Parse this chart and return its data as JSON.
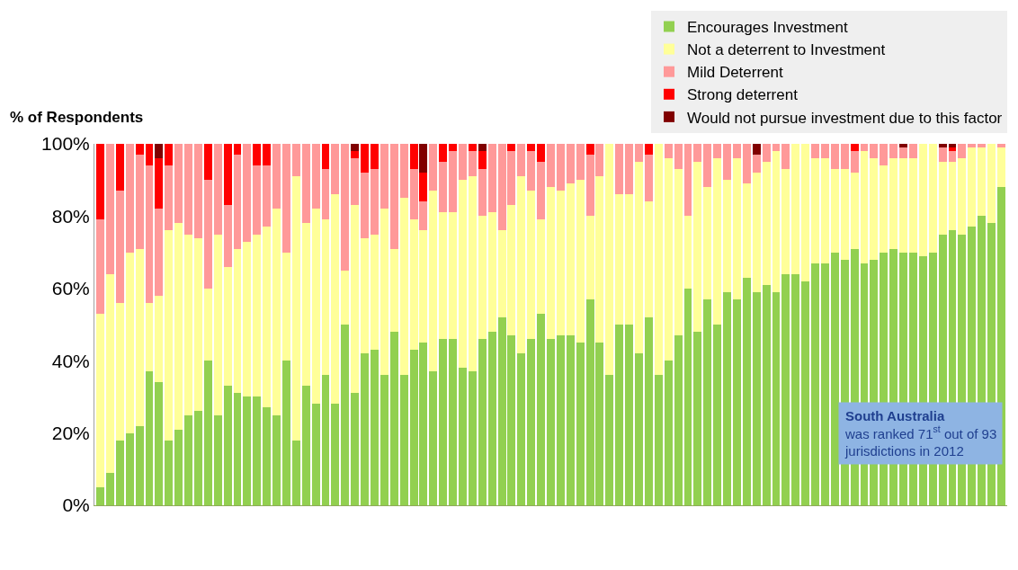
{
  "chart_data": {
    "type": "bar",
    "stacked": true,
    "ylabel": "% of Respondents",
    "categories": [
      null,
      null,
      null,
      null,
      null,
      null,
      null,
      null,
      null,
      null,
      null,
      null,
      null,
      null,
      null,
      null,
      null,
      null,
      null,
      null,
      null,
      null,
      null,
      null,
      null,
      null,
      null,
      null,
      null,
      null,
      null,
      null,
      null,
      null,
      null,
      null,
      null,
      null,
      null,
      null,
      null,
      null,
      null,
      null,
      null,
      null,
      null,
      null,
      null,
      null,
      null,
      null,
      null,
      null,
      null,
      null,
      null,
      null,
      null,
      null,
      null,
      null,
      null,
      null,
      null,
      null,
      null,
      null,
      null,
      null,
      null,
      null,
      null,
      null,
      null,
      null,
      null,
      null,
      null,
      null,
      null,
      null,
      null,
      null,
      null,
      null,
      null,
      null,
      null,
      null,
      null,
      null,
      null
    ],
    "series": [
      {
        "name": "Encourages Investment",
        "color": "#92d050",
        "values": [
          5,
          9,
          18,
          20,
          22,
          37,
          34,
          18,
          21,
          25,
          26,
          40,
          25,
          33,
          31,
          30,
          30,
          27,
          25,
          40,
          18,
          33,
          28,
          36,
          28,
          50,
          31,
          42,
          43,
          36,
          48,
          36,
          43,
          45,
          37,
          46,
          46,
          38,
          37,
          46,
          48,
          52,
          47,
          42,
          46,
          53,
          46,
          47,
          47,
          45,
          57,
          45,
          36,
          50,
          50,
          42,
          52,
          36,
          40,
          47,
          60,
          48,
          57,
          50,
          59,
          57,
          63,
          59,
          61,
          59,
          64,
          64,
          62,
          67,
          67,
          70,
          68,
          71,
          67,
          68,
          70,
          71,
          70,
          70,
          69,
          70,
          75,
          76,
          75,
          77,
          80,
          78,
          88
        ]
      },
      {
        "name": "Not a deterrent to Investment",
        "color": "#ffff99",
        "values": [
          48,
          55,
          38,
          50,
          49,
          19,
          24,
          58,
          57,
          50,
          48,
          20,
          50,
          33,
          40,
          43,
          45,
          50,
          57,
          30,
          73,
          45,
          54,
          43,
          58,
          15,
          52,
          32,
          32,
          46,
          23,
          49,
          36,
          31,
          50,
          35,
          35,
          52,
          54,
          34,
          33,
          24,
          36,
          49,
          41,
          26,
          42,
          40,
          42,
          45,
          23,
          46,
          64,
          36,
          36,
          53,
          32,
          64,
          56,
          46,
          20,
          47,
          31,
          46,
          31,
          39,
          26,
          33,
          34,
          39,
          29,
          36,
          38,
          29,
          29,
          23,
          25,
          21,
          31,
          28,
          24,
          25,
          26,
          26,
          31,
          30,
          20,
          19,
          21,
          22,
          19,
          22,
          11
        ]
      },
      {
        "name": "Mild Deterrent",
        "color": "#ff9999",
        "values": [
          26,
          36,
          31,
          30,
          26,
          38,
          24,
          18,
          22,
          25,
          26,
          30,
          25,
          17,
          26,
          27,
          19,
          17,
          18,
          30,
          9,
          22,
          18,
          14,
          14,
          35,
          13,
          18,
          18,
          18,
          29,
          15,
          14,
          8,
          13,
          14,
          17,
          10,
          7,
          13,
          19,
          24,
          15,
          9,
          11,
          16,
          12,
          13,
          11,
          10,
          17,
          9,
          0,
          14,
          14,
          5,
          13,
          0,
          4,
          7,
          20,
          5,
          12,
          4,
          10,
          4,
          11,
          5,
          5,
          2,
          7,
          0,
          0,
          4,
          4,
          7,
          7,
          6,
          2,
          4,
          6,
          4,
          3,
          4,
          0,
          0,
          4,
          3,
          4,
          1,
          1,
          0,
          1
        ]
      },
      {
        "name": "Strong deterrent",
        "color": "#ff0000",
        "values": [
          21,
          0,
          13,
          0,
          3,
          6,
          14,
          6,
          0,
          0,
          0,
          10,
          0,
          17,
          3,
          0,
          6,
          6,
          0,
          0,
          0,
          0,
          0,
          7,
          0,
          0,
          2,
          8,
          7,
          0,
          0,
          0,
          7,
          8,
          0,
          5,
          2,
          0,
          2,
          5,
          0,
          0,
          2,
          0,
          2,
          5,
          0,
          0,
          0,
          0,
          3,
          0,
          0,
          0,
          0,
          0,
          3,
          0,
          0,
          0,
          0,
          0,
          0,
          0,
          0,
          0,
          0,
          0,
          0,
          0,
          0,
          0,
          0,
          0,
          0,
          0,
          0,
          2,
          0,
          0,
          0,
          0,
          0,
          0,
          0,
          0,
          0,
          1,
          0,
          0,
          0,
          0,
          0
        ]
      },
      {
        "name": "Would not pursue investment due to this factor",
        "color": "#800000",
        "values": [
          0,
          0,
          0,
          0,
          0,
          0,
          4,
          0,
          0,
          0,
          0,
          0,
          0,
          0,
          0,
          0,
          0,
          0,
          0,
          0,
          0,
          0,
          0,
          0,
          0,
          0,
          2,
          0,
          0,
          0,
          0,
          0,
          0,
          8,
          0,
          0,
          0,
          0,
          0,
          2,
          0,
          0,
          0,
          0,
          0,
          0,
          0,
          0,
          0,
          0,
          0,
          0,
          0,
          0,
          0,
          0,
          0,
          0,
          0,
          0,
          0,
          0,
          0,
          0,
          0,
          0,
          0,
          3,
          0,
          0,
          0,
          0,
          0,
          0,
          0,
          0,
          0,
          0,
          0,
          0,
          0,
          0,
          1,
          0,
          0,
          0,
          1,
          1,
          0,
          0,
          0,
          0,
          0
        ]
      }
    ],
    "ylim": [
      0,
      100
    ],
    "yticks": [
      {
        "value": 0,
        "label": "0%"
      },
      {
        "value": 20,
        "label": "20%"
      },
      {
        "value": 40,
        "label": "40%"
      },
      {
        "value": 60,
        "label": "60%"
      },
      {
        "value": 80,
        "label": "80%"
      },
      {
        "value": 100,
        "label": "100%"
      }
    ],
    "annotations": [
      "South Australia\nwas ranked 71$^{st}$ out of 93\njurisdictions in 2012"
    ],
    "grid": false,
    "legend": "top right"
  }
}
